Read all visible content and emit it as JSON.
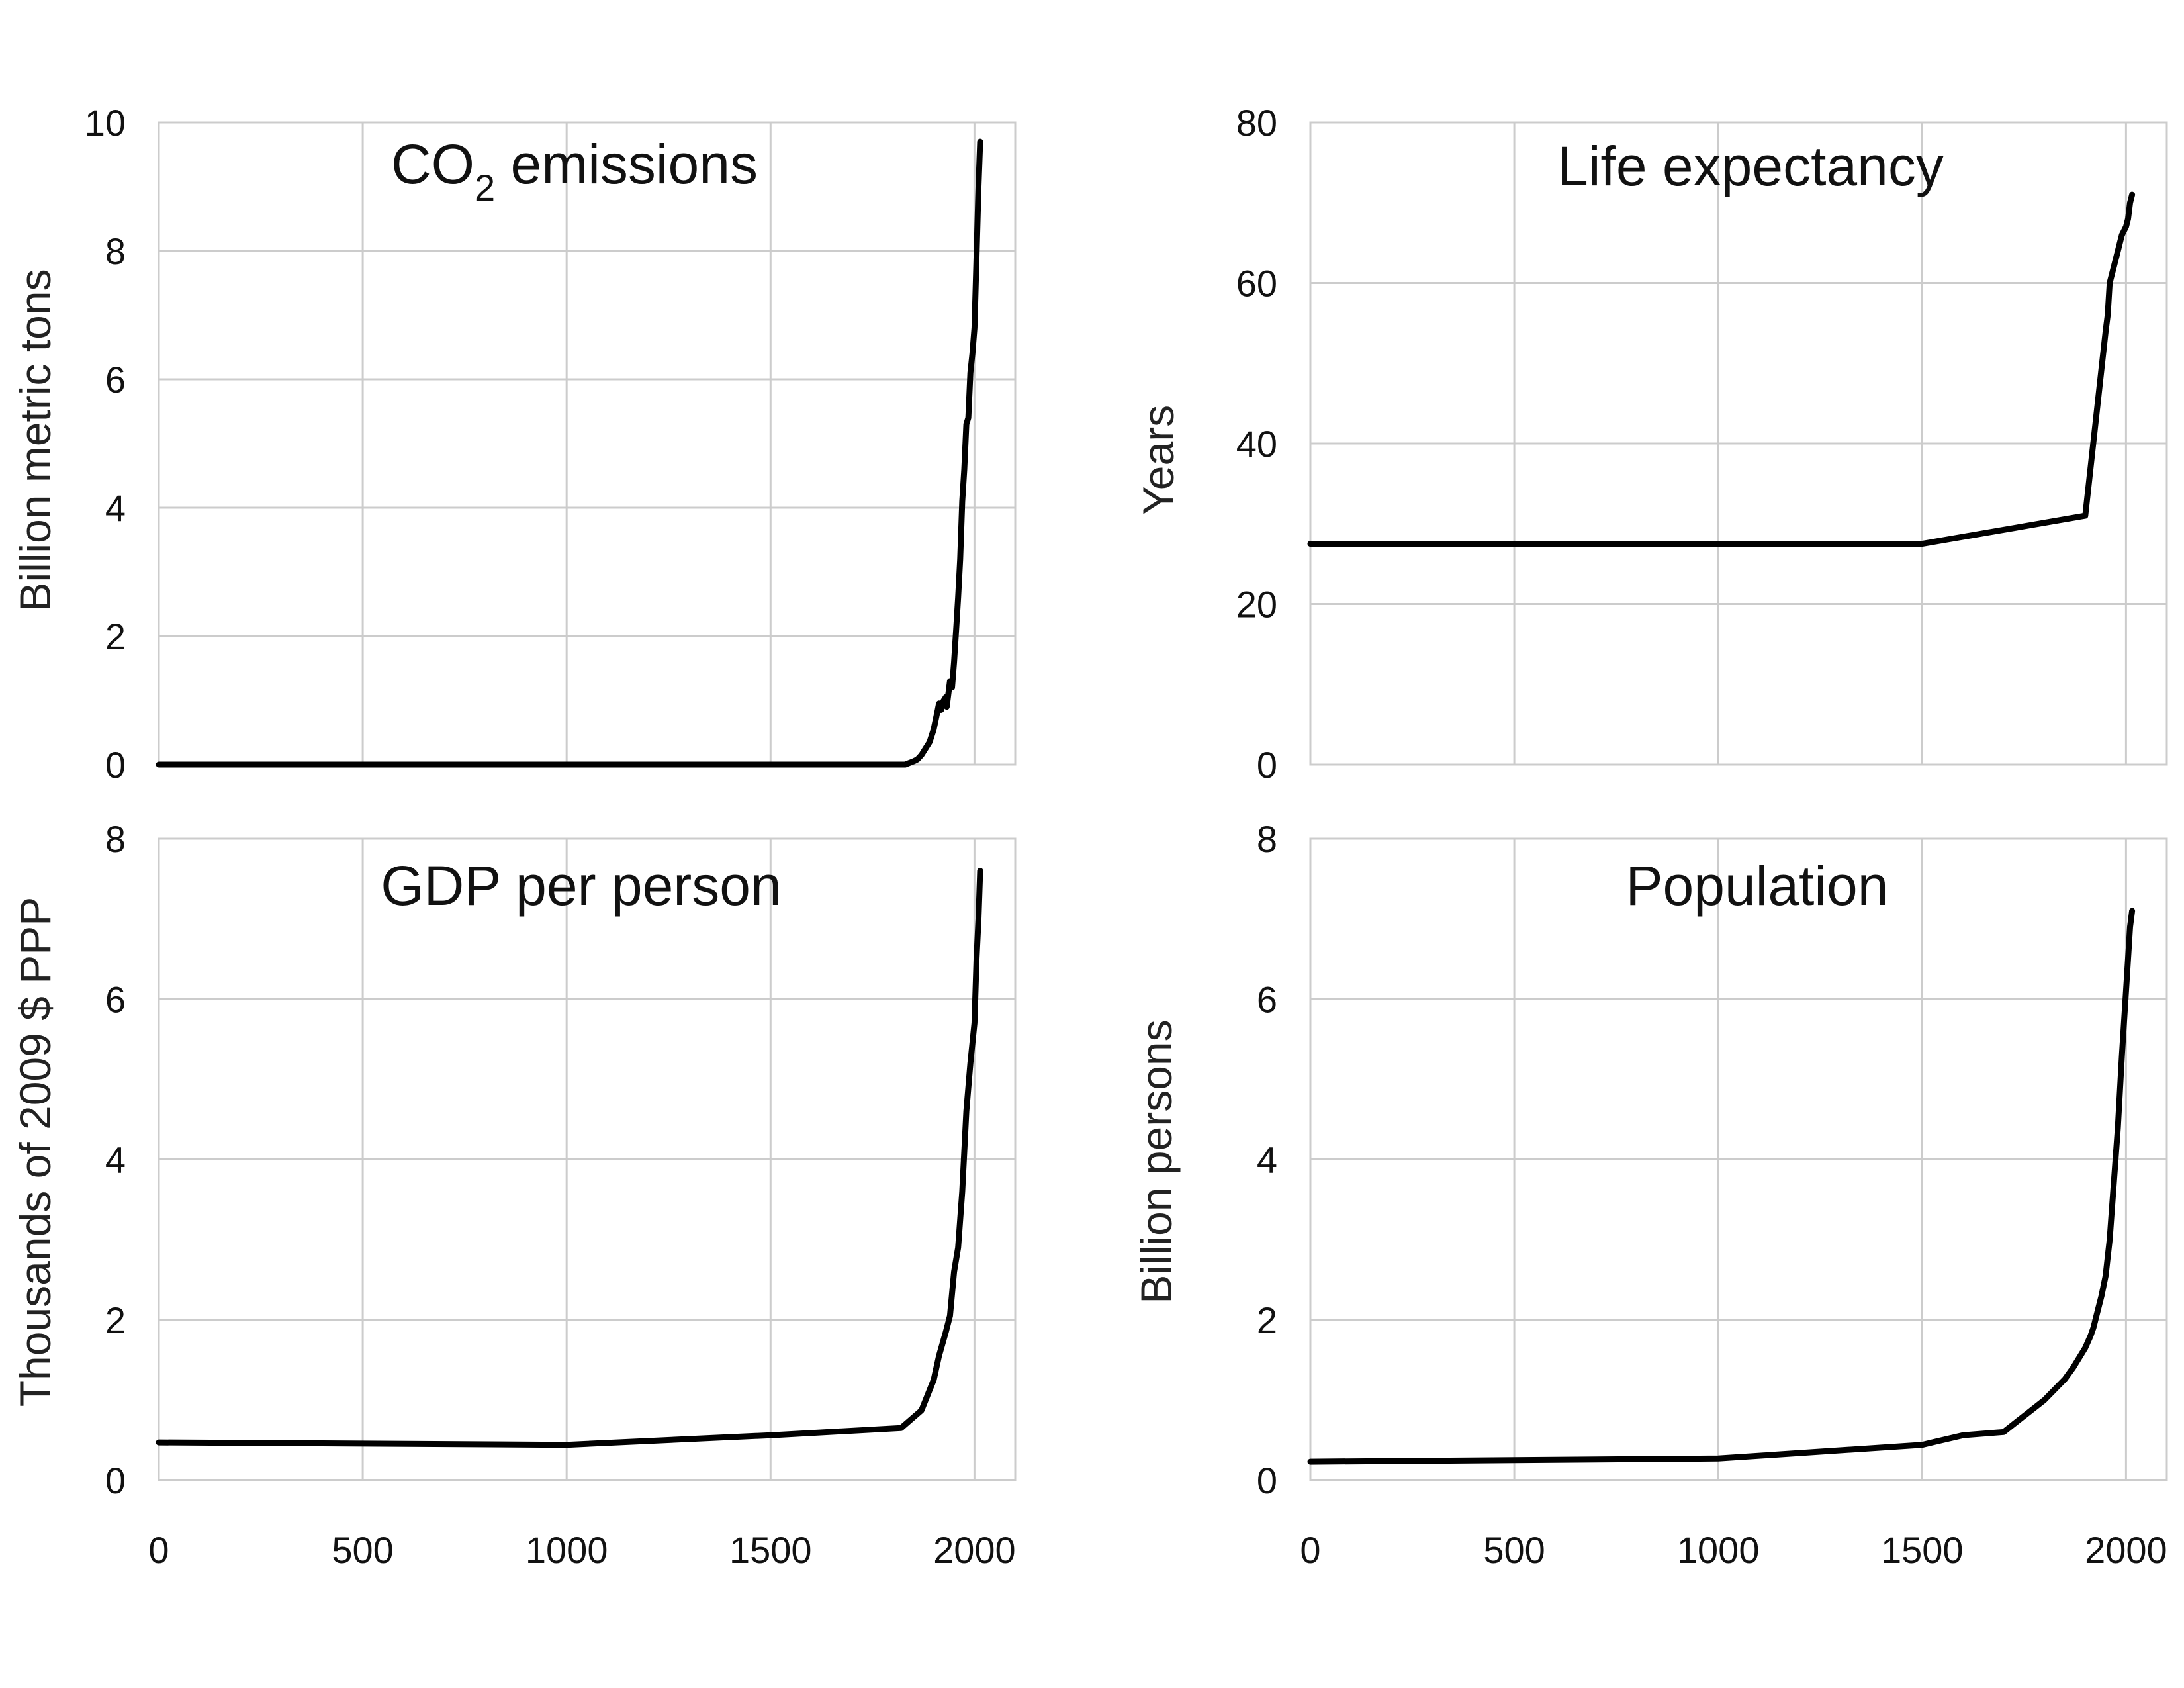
{
  "chart_data": [
    {
      "type": "line",
      "title": {
        "main": "CO",
        "sub": "2",
        "rest": " emissions"
      },
      "ylabel": "Billion metric tons",
      "xlim": [
        0,
        2100
      ],
      "ylim": [
        0,
        10
      ],
      "yticks": [
        0,
        2,
        4,
        6,
        8,
        10
      ],
      "xticks": [
        0,
        500,
        1000,
        1500,
        2000
      ],
      "show_xtick_labels": false,
      "grid": true,
      "x": [
        0,
        1750,
        1800,
        1830,
        1850,
        1860,
        1870,
        1880,
        1890,
        1900,
        1910,
        1913,
        1918,
        1920,
        1930,
        1932,
        1940,
        1945,
        1950,
        1955,
        1960,
        1965,
        1970,
        1975,
        1980,
        1985,
        1990,
        1995,
        2000,
        2005,
        2010,
        2014
      ],
      "y": [
        0,
        0,
        0,
        0,
        0.05,
        0.08,
        0.15,
        0.25,
        0.35,
        0.55,
        0.85,
        0.95,
        0.85,
        0.95,
        1.05,
        0.9,
        1.3,
        1.2,
        1.6,
        2.1,
        2.6,
        3.2,
        4.1,
        4.6,
        5.3,
        5.4,
        6.1,
        6.4,
        6.8,
        7.9,
        9.0,
        9.7
      ]
    },
    {
      "type": "line",
      "title": "Life expectancy",
      "ylabel": "Years",
      "xlim": [
        0,
        2100
      ],
      "ylim": [
        0,
        80
      ],
      "yticks": [
        0,
        20,
        40,
        60,
        80
      ],
      "xticks": [
        0,
        500,
        1000,
        1500,
        2000
      ],
      "show_xtick_labels": false,
      "grid": true,
      "x": [
        0,
        1500,
        1900,
        1950,
        1955,
        1960,
        1965,
        1970,
        1975,
        1980,
        1985,
        1990,
        1995,
        2000,
        2005,
        2010,
        2015
      ],
      "y": [
        27.5,
        27.5,
        31,
        54,
        56,
        60,
        61,
        62,
        63,
        64,
        65,
        66,
        66.5,
        67,
        68,
        70,
        71
      ]
    },
    {
      "type": "line",
      "title": "GDP per person",
      "ylabel": "Thousands of 2009 $ PPP",
      "xlim": [
        0,
        2100
      ],
      "ylim": [
        0,
        8
      ],
      "yticks": [
        0,
        2,
        4,
        6,
        8
      ],
      "xticks": [
        0,
        500,
        1000,
        1500,
        2000
      ],
      "show_xtick_labels": true,
      "grid": true,
      "x": [
        0,
        1000,
        1500,
        1820,
        1870,
        1900,
        1913,
        1930,
        1940,
        1950,
        1960,
        1970,
        1975,
        1980,
        1990,
        2000,
        2005,
        2010,
        2014
      ],
      "y": [
        0.47,
        0.44,
        0.56,
        0.65,
        0.87,
        1.25,
        1.55,
        1.85,
        2.05,
        2.6,
        2.9,
        3.6,
        4.1,
        4.6,
        5.2,
        5.7,
        6.5,
        7.0,
        7.6
      ]
    },
    {
      "type": "line",
      "title": "Population",
      "ylabel": "Billion persons",
      "xlim": [
        0,
        2100
      ],
      "ylim": [
        0,
        8
      ],
      "yticks": [
        0,
        2,
        4,
        6,
        8
      ],
      "xticks": [
        0,
        500,
        1000,
        1500,
        2000
      ],
      "show_xtick_labels": true,
      "grid": true,
      "x": [
        0,
        1000,
        1500,
        1600,
        1700,
        1800,
        1850,
        1870,
        1900,
        1913,
        1920,
        1930,
        1940,
        1950,
        1960,
        1970,
        1980,
        1990,
        2000,
        2010,
        2015
      ],
      "y": [
        0.23,
        0.27,
        0.44,
        0.56,
        0.6,
        1.0,
        1.26,
        1.4,
        1.65,
        1.8,
        1.9,
        2.1,
        2.3,
        2.55,
        3.0,
        3.7,
        4.4,
        5.3,
        6.1,
        6.9,
        7.1
      ]
    }
  ]
}
